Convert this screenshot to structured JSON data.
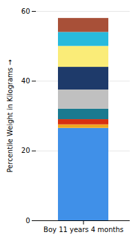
{
  "chart_data": {
    "type": "bar",
    "stacked": true,
    "xlabel": "Boy 11 years 4 months",
    "ylabel": "Percentile Weight in Kilograms",
    "categories": [
      "Boy 11 years 4 months"
    ],
    "series": [
      {
        "color": "#4090E8",
        "values": [
          26.5
        ]
      },
      {
        "color": "#F0A820",
        "values": [
          1.0
        ]
      },
      {
        "color": "#D83010",
        "values": [
          1.5
        ]
      },
      {
        "color": "#1A7A90",
        "values": [
          3.0
        ]
      },
      {
        "color": "#C0C0C0",
        "values": [
          5.5
        ]
      },
      {
        "color": "#1E3A6A",
        "values": [
          6.5
        ]
      },
      {
        "color": "#FAEC78",
        "values": [
          6.0
        ]
      },
      {
        "color": "#28BADC",
        "values": [
          4.0
        ]
      },
      {
        "color": "#A85038",
        "values": [
          4.0
        ]
      }
    ],
    "ylim": [
      0,
      60
    ],
    "yticks": [
      0,
      20,
      40,
      60
    ],
    "grid": true
  }
}
